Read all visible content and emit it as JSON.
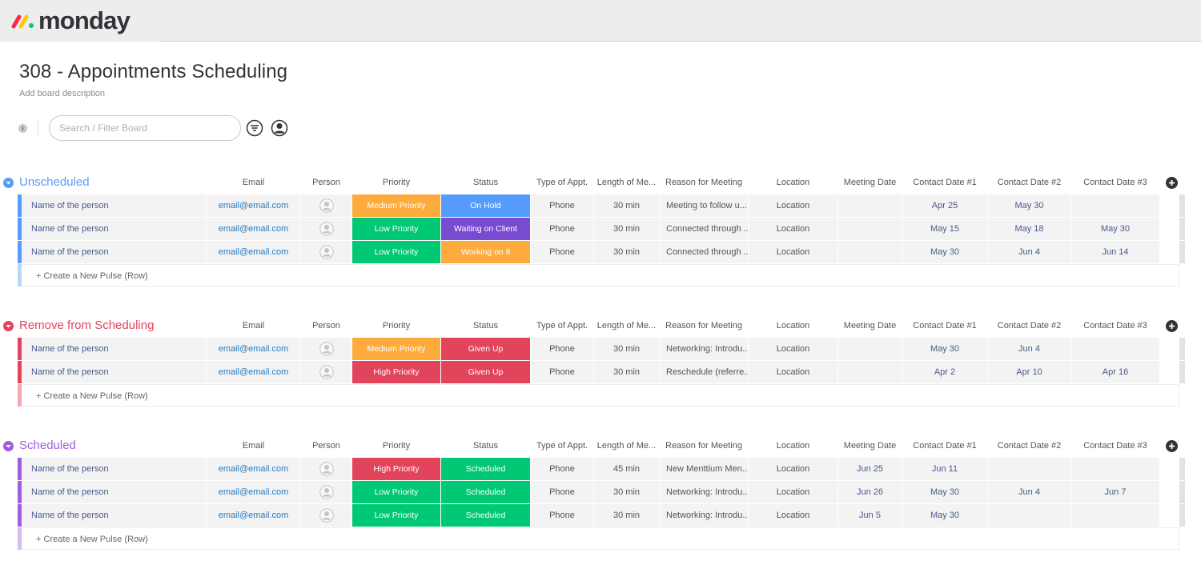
{
  "app": {
    "logo_text": "monday"
  },
  "board": {
    "title": "308 - Appointments Scheduling",
    "description": "Add board description",
    "search_placeholder": "Search / Filter Board",
    "info_glyph": "i"
  },
  "columns": [
    "Email",
    "Person",
    "Priority",
    "Status",
    "Type of Appt.",
    "Length of Me...",
    "Reason for Meeting",
    "Location",
    "Meeting Date",
    "Contact Date #1",
    "Contact Date #2",
    "Contact Date #3"
  ],
  "colors": {
    "medium_priority": "#fdab3d",
    "low_priority": "#00c875",
    "high_priority": "#e2445c",
    "on_hold": "#579bfc",
    "waiting_on_client": "#784bd1",
    "working_on_it": "#fdab3d",
    "given_up": "#e2445c",
    "scheduled": "#00c875"
  },
  "groups": [
    {
      "title": "Unscheduled",
      "color": "#579bfc",
      "light_color": "#bcd6fb",
      "new_row_label": "+ Create a New Pulse (Row)",
      "rows": [
        {
          "name": "Name of the person",
          "email": "email@email.com",
          "priority": "Medium Priority",
          "priority_color": "#fdab3d",
          "status": "On Hold",
          "status_color": "#579bfc",
          "type": "Phone",
          "length": "30 min",
          "reason": "Meeting to follow u...",
          "location": "Location",
          "meeting_date": "",
          "contact1": "Apr 25",
          "contact2": "May 30",
          "contact3": ""
        },
        {
          "name": "Name of the person",
          "email": "email@email.com",
          "priority": "Low Priority",
          "priority_color": "#00c875",
          "status": "Waiting on Client",
          "status_color": "#784bd1",
          "type": "Phone",
          "length": "30 min",
          "reason": "Connected through ...",
          "location": "Location",
          "meeting_date": "",
          "contact1": "May 15",
          "contact2": "May 18",
          "contact3": "May 30"
        },
        {
          "name": "Name of the person",
          "email": "email@email.com",
          "priority": "Low Priority",
          "priority_color": "#00c875",
          "status": "Working on it",
          "status_color": "#fdab3d",
          "type": "Phone",
          "length": "30 min",
          "reason": "Connected through ...",
          "location": "Location",
          "meeting_date": "",
          "contact1": "May 30",
          "contact2": "Jun 4",
          "contact3": "Jun 14"
        }
      ]
    },
    {
      "title": "Remove from Scheduling",
      "color": "#e2445c",
      "light_color": "#f0a9b5",
      "new_row_label": "+ Create a New Pulse (Row)",
      "rows": [
        {
          "name": "Name of the person",
          "email": "email@email.com",
          "priority": "Medium Priority",
          "priority_color": "#fdab3d",
          "status": "Given Up",
          "status_color": "#e2445c",
          "type": "Phone",
          "length": "30 min",
          "reason": "Networking: Introdu...",
          "location": "Location",
          "meeting_date": "",
          "contact1": "May 30",
          "contact2": "Jun 4",
          "contact3": ""
        },
        {
          "name": "Name of the person",
          "email": "email@email.com",
          "priority": "High Priority",
          "priority_color": "#e2445c",
          "status": "Given Up",
          "status_color": "#e2445c",
          "type": "Phone",
          "length": "30 min",
          "reason": "Reschedule (referre...",
          "location": "Location",
          "meeting_date": "",
          "contact1": "Apr 2",
          "contact2": "Apr 10",
          "contact3": "Apr 16"
        }
      ]
    },
    {
      "title": "Scheduled",
      "color": "#a25ddc",
      "light_color": "#d9bdf0",
      "new_row_label": "+ Create a New Pulse (Row)",
      "rows": [
        {
          "name": "Name of the person",
          "email": "email@email.com",
          "priority": "High Priority",
          "priority_color": "#e2445c",
          "status": "Scheduled",
          "status_color": "#00c875",
          "type": "Phone",
          "length": "45 min",
          "reason": "New Menttium Men...",
          "location": "Location",
          "meeting_date": "Jun 25",
          "contact1": "Jun 11",
          "contact2": "",
          "contact3": ""
        },
        {
          "name": "Name of the person",
          "email": "email@email.com",
          "priority": "Low Priority",
          "priority_color": "#00c875",
          "status": "Scheduled",
          "status_color": "#00c875",
          "type": "Phone",
          "length": "30 min",
          "reason": "Networking: Introdu...",
          "location": "Location",
          "meeting_date": "Jun 26",
          "contact1": "May 30",
          "contact2": "Jun 4",
          "contact3": "Jun 7"
        },
        {
          "name": "Name of the person",
          "email": "email@email.com",
          "priority": "Low Priority",
          "priority_color": "#00c875",
          "status": "Scheduled",
          "status_color": "#00c875",
          "type": "Phone",
          "length": "30 min",
          "reason": "Networking: Introdu...",
          "location": "Location",
          "meeting_date": "Jun 5",
          "contact1": "May 30",
          "contact2": "",
          "contact3": ""
        }
      ]
    }
  ]
}
